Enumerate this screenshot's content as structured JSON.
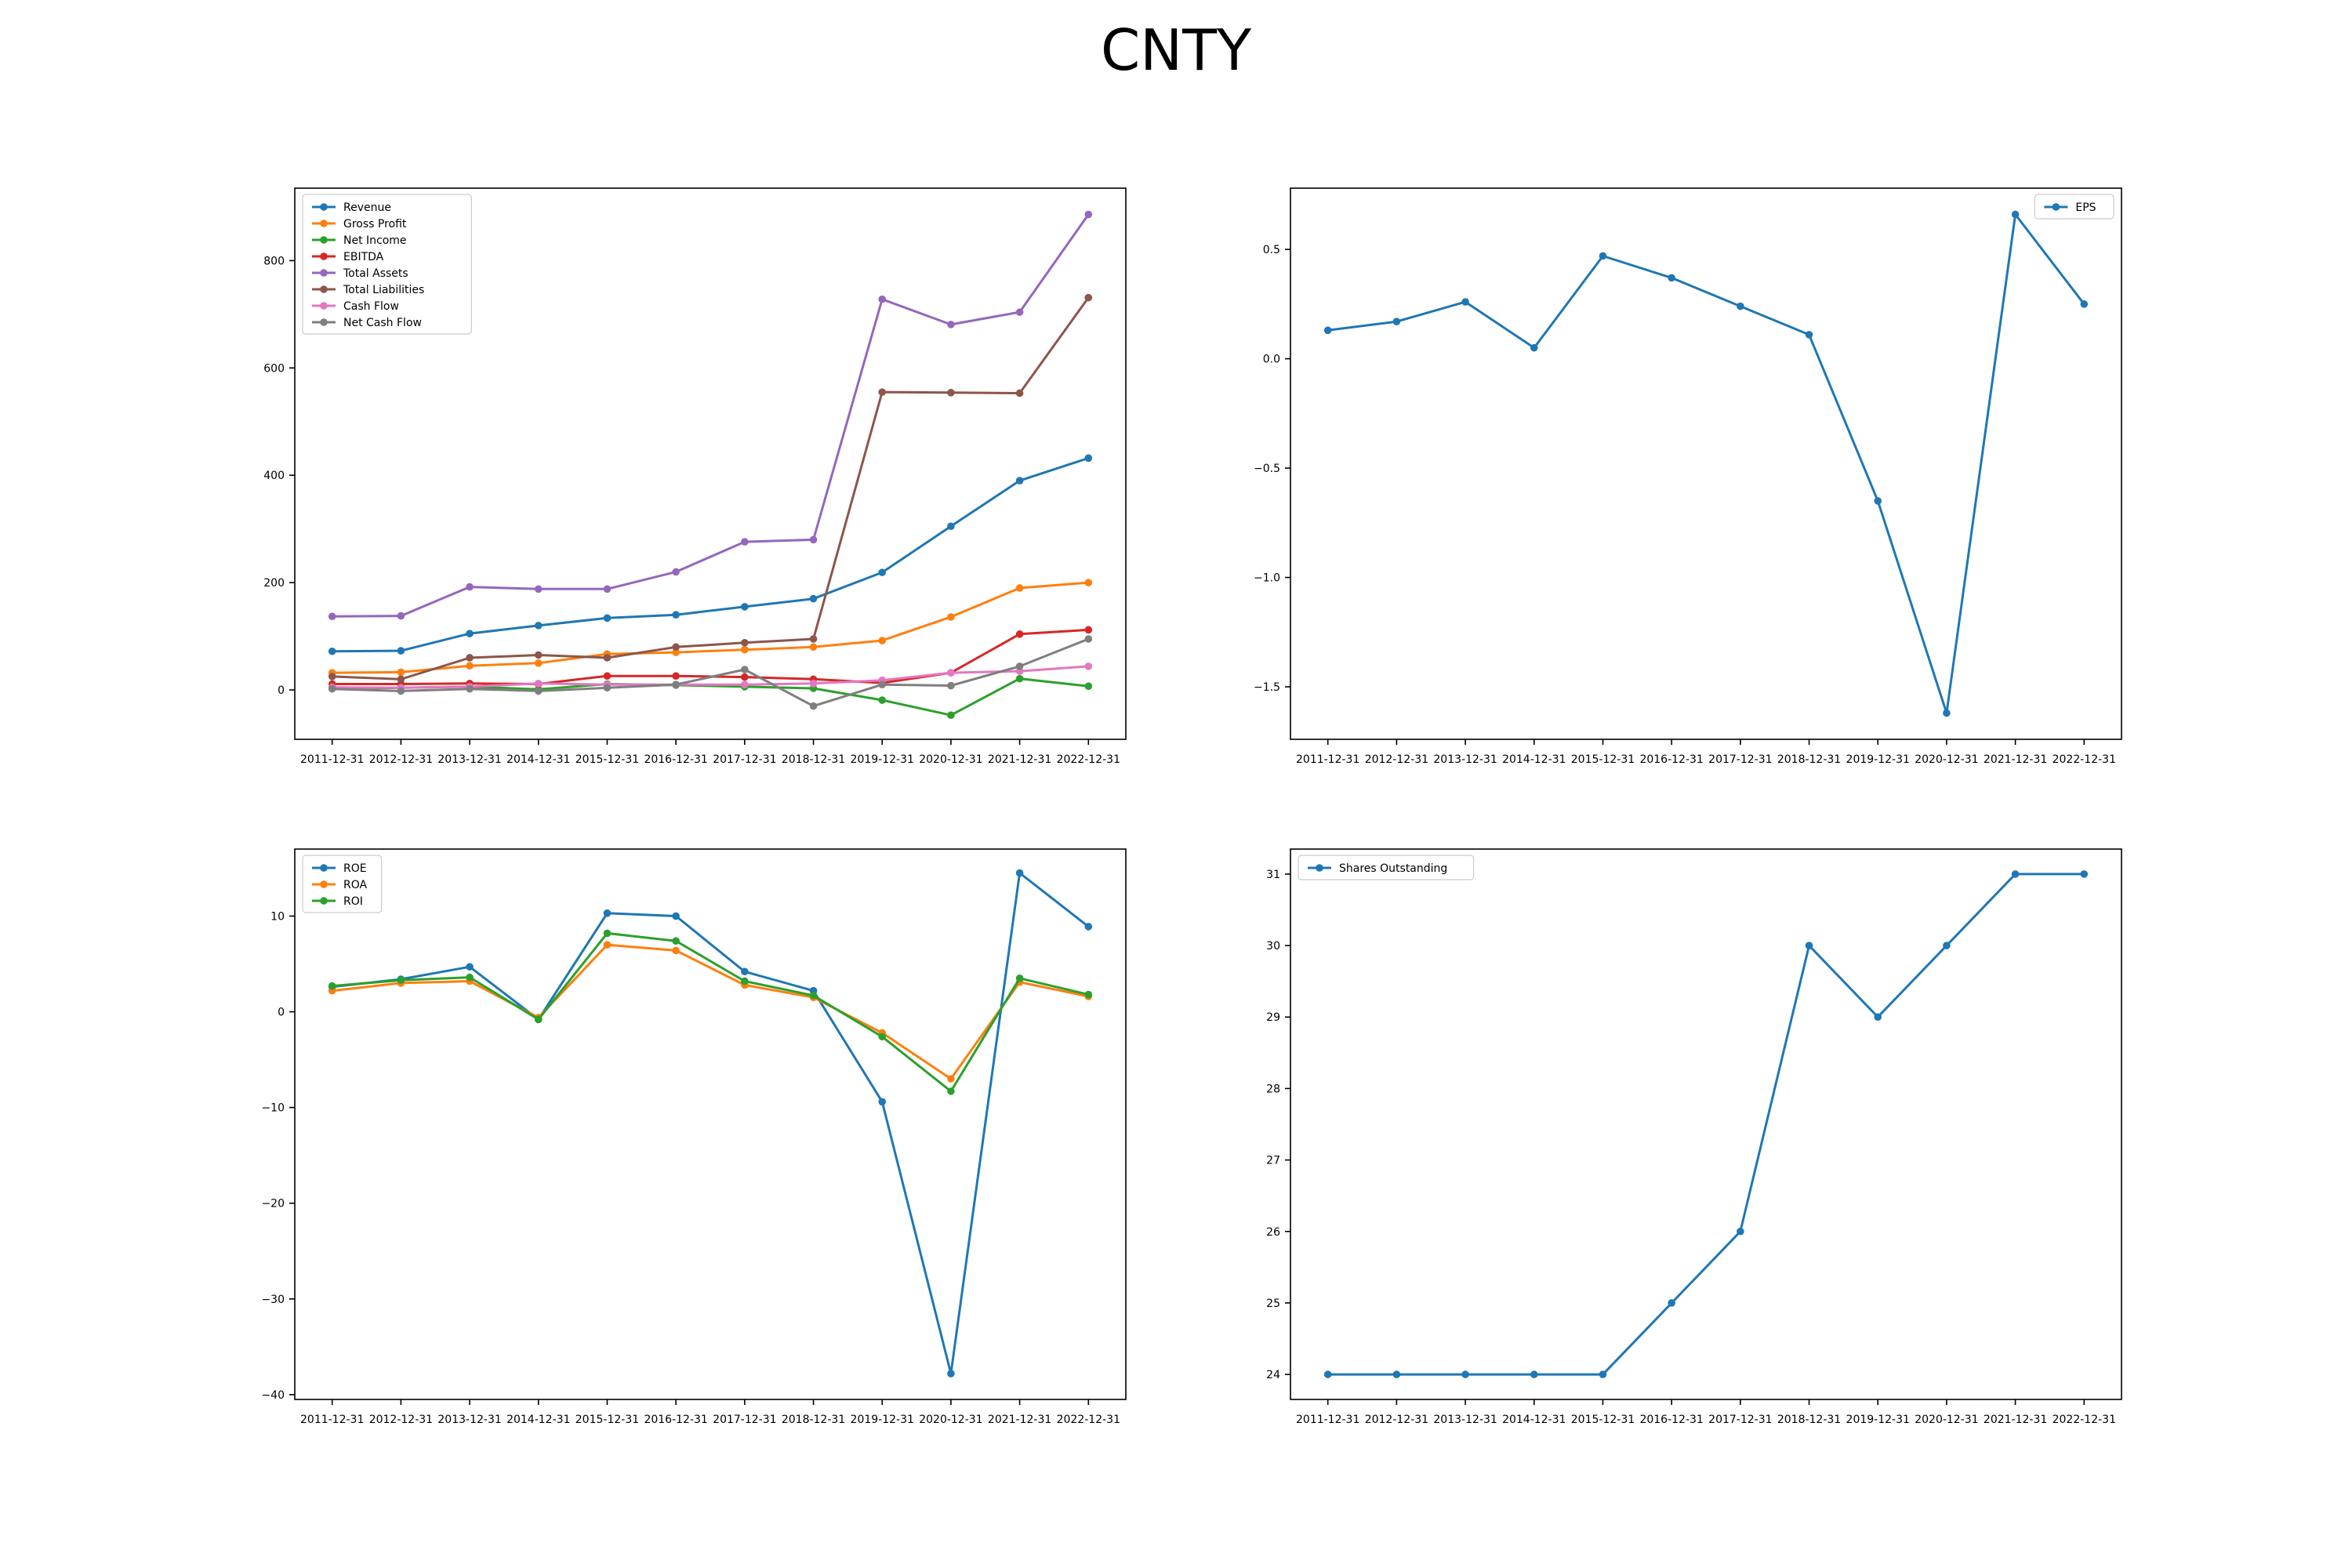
{
  "title": "CNTY",
  "colors": {
    "blue": "#1f77b4",
    "orange": "#ff7f0e",
    "green": "#2ca02c",
    "red": "#d62728",
    "purple": "#9467bd",
    "brown": "#8c564b",
    "pink": "#e377c2",
    "gray": "#7f7f7f"
  },
  "chart_data": [
    {
      "id": "financials",
      "type": "line",
      "title": "",
      "xlabel": "",
      "ylabel": "",
      "categories": [
        "2011-12-31",
        "2012-12-31",
        "2013-12-31",
        "2014-12-31",
        "2015-12-31",
        "2016-12-31",
        "2017-12-31",
        "2018-12-31",
        "2019-12-31",
        "2020-12-31",
        "2021-12-31",
        "2022-12-31"
      ],
      "ylim": [
        -92,
        935
      ],
      "yticks": [
        0,
        200,
        400,
        600,
        800
      ],
      "legend": "top-left",
      "grid": false,
      "series": [
        {
          "name": "Revenue",
          "color": "#1f77b4",
          "values": [
            72,
            73,
            105,
            120,
            134,
            140,
            155,
            170,
            219,
            305,
            390,
            432
          ]
        },
        {
          "name": "Gross Profit",
          "color": "#ff7f0e",
          "values": [
            32,
            33,
            45,
            50,
            67,
            70,
            75,
            80,
            92,
            136,
            190,
            200
          ]
        },
        {
          "name": "Net Income",
          "color": "#2ca02c",
          "values": [
            3,
            4,
            6,
            1,
            11,
            9,
            6,
            3,
            -19,
            -47,
            21,
            7
          ]
        },
        {
          "name": "EBITDA",
          "color": "#d62728",
          "values": [
            11,
            11,
            12,
            11,
            26,
            26,
            24,
            20,
            13,
            32,
            104,
            112
          ]
        },
        {
          "name": "Total Assets",
          "color": "#9467bd",
          "values": [
            137,
            138,
            192,
            188,
            188,
            220,
            276,
            280,
            728,
            681,
            704,
            886
          ]
        },
        {
          "name": "Total Liabilities",
          "color": "#8c564b",
          "values": [
            25,
            20,
            60,
            65,
            60,
            80,
            88,
            95,
            555,
            554,
            553,
            731
          ]
        },
        {
          "name": "Cash Flow",
          "color": "#e377c2",
          "values": [
            5,
            4,
            6,
            12,
            10,
            10,
            10,
            12,
            18,
            32,
            35,
            44
          ]
        },
        {
          "name": "Net Cash Flow",
          "color": "#7f7f7f",
          "values": [
            2,
            -2,
            2,
            -2,
            4,
            10,
            38,
            -30,
            10,
            8,
            44,
            95
          ]
        }
      ]
    },
    {
      "id": "eps",
      "type": "line",
      "title": "",
      "xlabel": "",
      "ylabel": "",
      "categories": [
        "2011-12-31",
        "2012-12-31",
        "2013-12-31",
        "2014-12-31",
        "2015-12-31",
        "2016-12-31",
        "2017-12-31",
        "2018-12-31",
        "2019-12-31",
        "2020-12-31",
        "2021-12-31",
        "2022-12-31"
      ],
      "ylim": [
        -1.74,
        0.78
      ],
      "yticks": [
        -1.5,
        -1.0,
        -0.5,
        0.0,
        0.5
      ],
      "legend": "top-right",
      "grid": false,
      "series": [
        {
          "name": "EPS",
          "color": "#1f77b4",
          "values": [
            0.13,
            0.17,
            0.26,
            0.05,
            0.47,
            0.37,
            0.24,
            0.11,
            -0.65,
            -1.62,
            0.66,
            0.25
          ]
        }
      ]
    },
    {
      "id": "ratios",
      "type": "line",
      "title": "",
      "xlabel": "",
      "ylabel": "",
      "categories": [
        "2011-12-31",
        "2012-12-31",
        "2013-12-31",
        "2014-12-31",
        "2015-12-31",
        "2016-12-31",
        "2017-12-31",
        "2018-12-31",
        "2019-12-31",
        "2020-12-31",
        "2021-12-31",
        "2022-12-31"
      ],
      "ylim": [
        -40.5,
        17
      ],
      "yticks": [
        -40,
        -30,
        -20,
        -10,
        0,
        10
      ],
      "legend": "top-left",
      "grid": false,
      "series": [
        {
          "name": "ROE",
          "color": "#1f77b4",
          "values": [
            2.6,
            3.4,
            4.7,
            -0.8,
            10.3,
            10.0,
            4.2,
            2.2,
            -9.4,
            -37.8,
            14.5,
            8.9
          ]
        },
        {
          "name": "ROA",
          "color": "#ff7f0e",
          "values": [
            2.2,
            3.0,
            3.2,
            -0.6,
            7.0,
            6.4,
            2.8,
            1.5,
            -2.2,
            -7.0,
            3.1,
            1.6
          ]
        },
        {
          "name": "ROI",
          "color": "#2ca02c",
          "values": [
            2.7,
            3.3,
            3.6,
            -0.8,
            8.2,
            7.4,
            3.2,
            1.7,
            -2.6,
            -8.3,
            3.5,
            1.8
          ]
        }
      ]
    },
    {
      "id": "shares",
      "type": "line",
      "title": "",
      "xlabel": "",
      "ylabel": "",
      "categories": [
        "2011-12-31",
        "2012-12-31",
        "2013-12-31",
        "2014-12-31",
        "2015-12-31",
        "2016-12-31",
        "2017-12-31",
        "2018-12-31",
        "2019-12-31",
        "2020-12-31",
        "2021-12-31",
        "2022-12-31"
      ],
      "ylim": [
        23.65,
        31.35
      ],
      "yticks": [
        24,
        25,
        26,
        27,
        28,
        29,
        30,
        31
      ],
      "legend": "top-left",
      "grid": false,
      "series": [
        {
          "name": "Shares Outstanding",
          "color": "#1f77b4",
          "values": [
            24,
            24,
            24,
            24,
            24,
            25,
            26,
            30,
            29,
            30,
            31,
            31
          ]
        }
      ]
    }
  ]
}
